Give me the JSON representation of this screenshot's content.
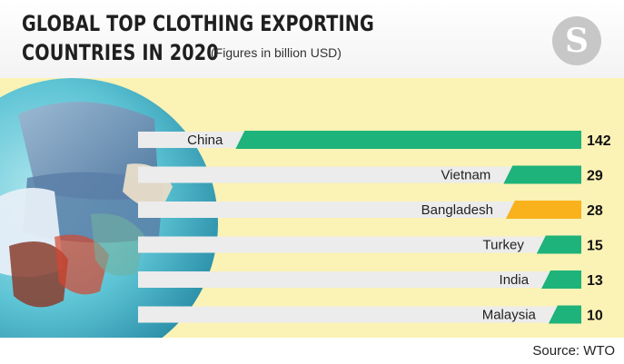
{
  "header": {
    "title_line1": "GLOBAL TOP CLOTHING EXPORTING",
    "title_line2": "COUNTRIES IN 2020",
    "subtitle": "(Figures in billion USD)",
    "logo_letter": "S"
  },
  "footer": {
    "source": "Source: WTO"
  },
  "colors": {
    "default_bar": "#1db37a",
    "highlight_bar": "#f9b21c",
    "label_band": "#ececec",
    "plot_background": "#fbf2b5"
  },
  "chart_data": {
    "type": "bar",
    "orientation": "horizontal",
    "title": "GLOBAL TOP CLOTHING EXPORTING COUNTRIES IN 2020",
    "subtitle": "(Figures in billion USD)",
    "categories": [
      "China",
      "Vietnam",
      "Bangladesh",
      "Turkey",
      "India",
      "Malaysia"
    ],
    "values": [
      142,
      29,
      28,
      15,
      13,
      10
    ],
    "highlight": "Bangladesh",
    "data_labels": true,
    "grid": false
  }
}
